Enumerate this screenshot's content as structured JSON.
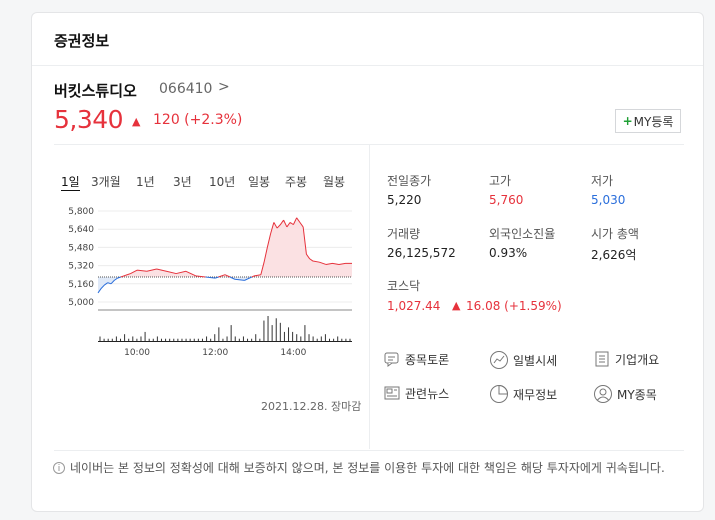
{
  "card": {
    "title": "증권정보"
  },
  "stock": {
    "name": "버킷스튜디오",
    "code": "066410",
    "code_arrow": ">",
    "price": "5,340",
    "change_arrow": "▲",
    "change": "120 (+2.3%)",
    "my_button_plus": "+",
    "my_button_label": "MY등록"
  },
  "tabs": [
    "1일",
    "3개월",
    "1년",
    "3년",
    "10년",
    "일봉",
    "주봉",
    "월봉"
  ],
  "chart_data": {
    "type": "line",
    "y_ticks": [
      "5,800",
      "5,640",
      "5,480",
      "5,320",
      "5,160",
      "5,000"
    ],
    "x_ticks": [
      "10:00",
      "12:00",
      "14:00"
    ],
    "ylim": [
      5000,
      5800
    ],
    "reference": 5220,
    "series": [
      {
        "x": [
          "09:00",
          "09:05",
          "09:10",
          "09:15",
          "09:20",
          "09:25",
          "09:30",
          "09:40",
          "09:50",
          "10:00",
          "10:15",
          "10:30",
          "10:45",
          "11:00",
          "11:15",
          "11:30",
          "11:45",
          "12:00",
          "12:15",
          "12:30",
          "12:45",
          "13:00",
          "13:10",
          "13:15",
          "13:20",
          "13:25",
          "13:30",
          "13:35",
          "13:40",
          "13:45",
          "13:50",
          "13:55",
          "14:00",
          "14:05",
          "14:10",
          "14:15",
          "14:20",
          "14:25",
          "14:30",
          "14:40",
          "14:50",
          "15:00",
          "15:10",
          "15:20",
          "15:30"
        ],
        "values": [
          5080,
          5120,
          5150,
          5170,
          5160,
          5190,
          5210,
          5230,
          5250,
          5280,
          5270,
          5290,
          5270,
          5250,
          5270,
          5230,
          5220,
          5210,
          5240,
          5200,
          5190,
          5230,
          5240,
          5350,
          5480,
          5600,
          5700,
          5650,
          5680,
          5720,
          5660,
          5700,
          5680,
          5740,
          5700,
          5660,
          5420,
          5380,
          5360,
          5350,
          5330,
          5340,
          5330,
          5340,
          5340
        ]
      }
    ],
    "volume": [
      2,
      1,
      1,
      1,
      2,
      1,
      3,
      1,
      2,
      1,
      2,
      4,
      1,
      1,
      2,
      1,
      1,
      1,
      1,
      1,
      1,
      1,
      1,
      1,
      1,
      1,
      2,
      1,
      3,
      6,
      1,
      2,
      7,
      2,
      1,
      2,
      1,
      1,
      3,
      1,
      9,
      11,
      7,
      10,
      8,
      4,
      6,
      4,
      3,
      2,
      7,
      3,
      2,
      1,
      2,
      3,
      1,
      1,
      2,
      1,
      1,
      1
    ]
  },
  "chart_date": "2021.12.28. 장마감",
  "info": {
    "prev_close_label": "전일종가",
    "prev_close": "5,220",
    "high_label": "고가",
    "high": "5,760",
    "low_label": "저가",
    "low": "5,030",
    "volume_label": "거래량",
    "volume": "26,125,572",
    "foreign_label": "외국인소진율",
    "foreign": "0.93%",
    "mcap_label": "시가 총액",
    "mcap": "2,626억",
    "index_label": "코스닥",
    "index_value": "1,027.44",
    "index_arrow": "▲",
    "index_change": "16.08 (+1.59%)"
  },
  "links": {
    "forum": "종목토론",
    "daily": "일별시세",
    "company": "기업개요",
    "news": "관련뉴스",
    "financial": "재무정보",
    "my": "MY종목"
  },
  "disclaimer": {
    "icon": "i",
    "text": "네이버는 본 정보의 정확성에 대해 보증하지 않으며, 본 정보를 이용한 투자에 대한 책임은 해당 투자자에게 귀속됩니다."
  }
}
